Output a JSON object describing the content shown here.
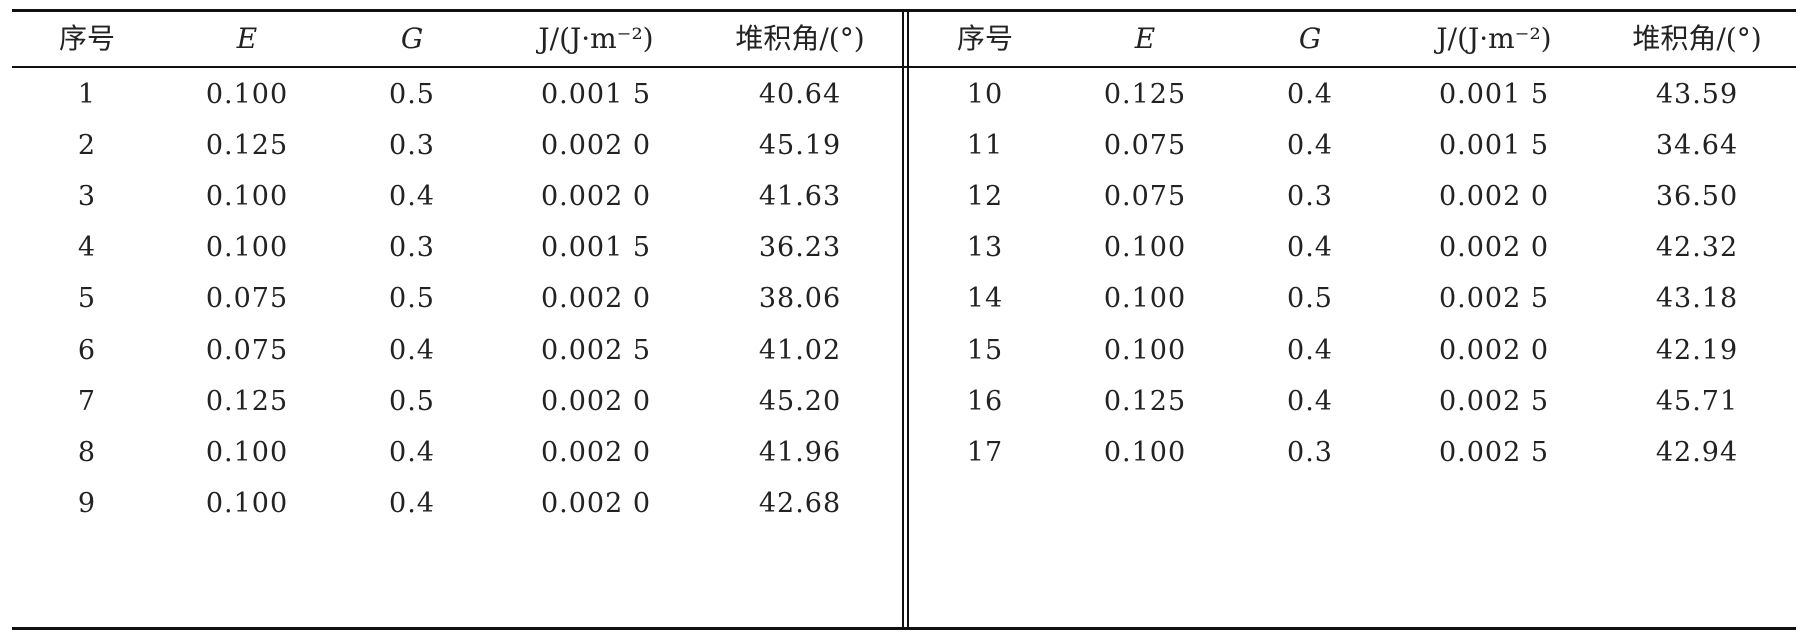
{
  "headers": {
    "index": "序号",
    "e": "E",
    "g": "G",
    "j": "J/(J·m⁻²)",
    "angle": "堆积角/(°)"
  },
  "left_rows": [
    {
      "index": "1",
      "e": "0.100",
      "g": "0.5",
      "j": "0.001 5",
      "angle": "40.64"
    },
    {
      "index": "2",
      "e": "0.125",
      "g": "0.3",
      "j": "0.002 0",
      "angle": "45.19"
    },
    {
      "index": "3",
      "e": "0.100",
      "g": "0.4",
      "j": "0.002 0",
      "angle": "41.63"
    },
    {
      "index": "4",
      "e": "0.100",
      "g": "0.3",
      "j": "0.001 5",
      "angle": "36.23"
    },
    {
      "index": "5",
      "e": "0.075",
      "g": "0.5",
      "j": "0.002 0",
      "angle": "38.06"
    },
    {
      "index": "6",
      "e": "0.075",
      "g": "0.4",
      "j": "0.002 5",
      "angle": "41.02"
    },
    {
      "index": "7",
      "e": "0.125",
      "g": "0.5",
      "j": "0.002 0",
      "angle": "45.20"
    },
    {
      "index": "8",
      "e": "0.100",
      "g": "0.4",
      "j": "0.002 0",
      "angle": "41.96"
    },
    {
      "index": "9",
      "e": "0.100",
      "g": "0.4",
      "j": "0.002 0",
      "angle": "42.68"
    }
  ],
  "right_rows": [
    {
      "index": "10",
      "e": "0.125",
      "g": "0.4",
      "j": "0.001 5",
      "angle": "43.59"
    },
    {
      "index": "11",
      "e": "0.075",
      "g": "0.4",
      "j": "0.001 5",
      "angle": "34.64"
    },
    {
      "index": "12",
      "e": "0.075",
      "g": "0.3",
      "j": "0.002 0",
      "angle": "36.50"
    },
    {
      "index": "13",
      "e": "0.100",
      "g": "0.4",
      "j": "0.002 0",
      "angle": "42.32"
    },
    {
      "index": "14",
      "e": "0.100",
      "g": "0.5",
      "j": "0.002 5",
      "angle": "43.18"
    },
    {
      "index": "15",
      "e": "0.100",
      "g": "0.4",
      "j": "0.002 0",
      "angle": "42.19"
    },
    {
      "index": "16",
      "e": "0.125",
      "g": "0.4",
      "j": "0.002 5",
      "angle": "45.71"
    },
    {
      "index": "17",
      "e": "0.100",
      "g": "0.3",
      "j": "0.002 5",
      "angle": "42.94"
    }
  ]
}
